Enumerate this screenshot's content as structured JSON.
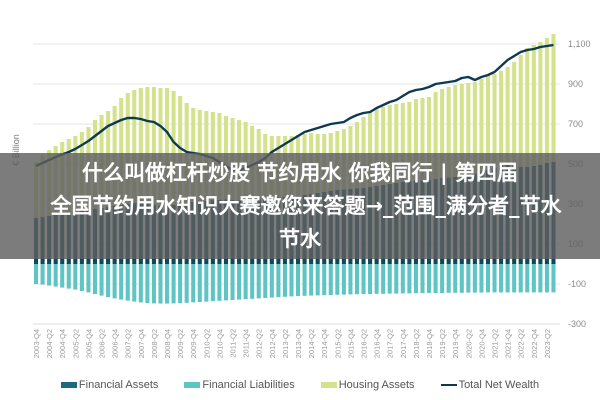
{
  "overlay": {
    "line1": "什么叫做杠杆炒股 节约用水 你我同行 | 第四届",
    "line2": "全国节约用水知识大赛邀您来答题→_范围_满分者_节水",
    "line3": "节水"
  },
  "colors": {
    "financial_assets": "#0a4a5c",
    "financial_liabilities": "#5fc4c4",
    "housing_assets": "#d4e28c",
    "total_net_wealth": "#0d3a50",
    "grid": "#e4e4e4"
  },
  "legend": [
    {
      "label": "Financial Assets",
      "color": "#1a6a80",
      "kind": "bar"
    },
    {
      "label": "Financial Liabilities",
      "color": "#5fc4c4",
      "kind": "bar"
    },
    {
      "label": "Housing Assets",
      "color": "#d4e28c",
      "kind": "bar"
    },
    {
      "label": "Total Net Wealth",
      "color": "#0d3a50",
      "kind": "line"
    }
  ],
  "chart_data": {
    "type": "bar",
    "title": "",
    "xlabel": "",
    "ylabel": "€ Billion",
    "ylim": [
      -300,
      1200
    ],
    "yticks": [
      1100,
      900,
      700,
      500,
      300,
      100,
      -100,
      -300
    ],
    "ytick_labels": [
      "1,100",
      "900",
      "700",
      "500",
      "300",
      "100",
      "-100",
      "-300"
    ],
    "grid": true,
    "legend_position": "bottom",
    "x_tick_labels": [
      "2003-Q4",
      "2004-Q2",
      "2004-Q4",
      "2005-Q2",
      "2005-Q4",
      "2006-Q2",
      "2006-Q4",
      "2007-Q2",
      "2007-Q4",
      "2008-Q2",
      "2008-Q4",
      "2009-Q2",
      "2009-Q4",
      "2010-Q2",
      "2010-Q4",
      "2011-Q2",
      "2011-Q4",
      "2012-Q2",
      "2012-Q4",
      "2013-Q2",
      "2013-Q4",
      "2014-Q2",
      "2014-Q4",
      "2015-Q2",
      "2015-Q4",
      "2016-Q2",
      "2016-Q4",
      "2017-Q2",
      "2017-Q4",
      "2018-Q2",
      "2018-Q4",
      "2019-Q2",
      "2019-Q4",
      "2020-Q2",
      "2020-Q4",
      "2021-Q2",
      "2021-Q4",
      "2022-Q2",
      "2022-Q4",
      "2023-Q2"
    ],
    "categories": [
      "2003-Q4",
      "2004-Q1",
      "2004-Q2",
      "2004-Q3",
      "2004-Q4",
      "2005-Q1",
      "2005-Q2",
      "2005-Q3",
      "2005-Q4",
      "2006-Q1",
      "2006-Q2",
      "2006-Q3",
      "2006-Q4",
      "2007-Q1",
      "2007-Q2",
      "2007-Q3",
      "2007-Q4",
      "2008-Q1",
      "2008-Q2",
      "2008-Q3",
      "2008-Q4",
      "2009-Q1",
      "2009-Q2",
      "2009-Q3",
      "2009-Q4",
      "2010-Q1",
      "2010-Q2",
      "2010-Q3",
      "2010-Q4",
      "2011-Q1",
      "2011-Q2",
      "2011-Q3",
      "2011-Q4",
      "2012-Q1",
      "2012-Q2",
      "2012-Q3",
      "2012-Q4",
      "2013-Q1",
      "2013-Q2",
      "2013-Q3",
      "2013-Q4",
      "2014-Q1",
      "2014-Q2",
      "2014-Q3",
      "2014-Q4",
      "2015-Q1",
      "2015-Q2",
      "2015-Q3",
      "2015-Q4",
      "2016-Q1",
      "2016-Q2",
      "2016-Q3",
      "2016-Q4",
      "2017-Q1",
      "2017-Q2",
      "2017-Q3",
      "2017-Q4",
      "2018-Q1",
      "2018-Q2",
      "2018-Q3",
      "2018-Q4",
      "2019-Q1",
      "2019-Q2",
      "2019-Q3",
      "2019-Q4",
      "2020-Q1",
      "2020-Q2",
      "2020-Q3",
      "2020-Q4",
      "2021-Q1",
      "2021-Q2",
      "2021-Q3",
      "2021-Q4",
      "2022-Q1",
      "2022-Q2",
      "2022-Q3",
      "2022-Q4",
      "2023-Q1",
      "2023-Q2",
      "2023-Q3"
    ],
    "series": [
      {
        "name": "Financial Assets",
        "kind": "bar",
        "values": [
          230,
          235,
          240,
          245,
          250,
          255,
          260,
          265,
          270,
          275,
          280,
          285,
          290,
          295,
          300,
          305,
          305,
          300,
          295,
          290,
          290,
          295,
          300,
          305,
          310,
          312,
          315,
          318,
          320,
          322,
          320,
          318,
          320,
          322,
          325,
          328,
          330,
          332,
          335,
          338,
          340,
          345,
          350,
          355,
          360,
          365,
          370,
          372,
          375,
          378,
          380,
          385,
          390,
          395,
          400,
          405,
          410,
          412,
          415,
          418,
          420,
          425,
          430,
          432,
          435,
          440,
          445,
          450,
          460,
          470,
          480,
          490,
          495,
          490,
          485,
          485,
          490,
          495,
          505,
          510
        ]
      },
      {
        "name": "Financial Liabilities",
        "kind": "bar",
        "values": [
          -100,
          -103,
          -108,
          -113,
          -118,
          -123,
          -128,
          -135,
          -142,
          -150,
          -158,
          -165,
          -172,
          -178,
          -183,
          -188,
          -192,
          -195,
          -197,
          -198,
          -198,
          -197,
          -196,
          -194,
          -192,
          -190,
          -188,
          -186,
          -184,
          -182,
          -180,
          -178,
          -176,
          -174,
          -172,
          -170,
          -168,
          -166,
          -164,
          -162,
          -160,
          -159,
          -158,
          -157,
          -156,
          -155,
          -154,
          -153,
          -152,
          -151,
          -150,
          -150,
          -149,
          -149,
          -148,
          -148,
          -147,
          -147,
          -146,
          -146,
          -145,
          -145,
          -145,
          -144,
          -144,
          -144,
          -143,
          -143,
          -143,
          -142,
          -142,
          -142,
          -142,
          -142,
          -142,
          -142,
          -142,
          -142,
          -142,
          -142
        ]
      },
      {
        "name": "Housing Assets",
        "kind": "bar",
        "values": [
          510,
          545,
          570,
          590,
          610,
          625,
          640,
          660,
          685,
          720,
          745,
          765,
          790,
          830,
          855,
          870,
          880,
          885,
          885,
          880,
          880,
          865,
          840,
          805,
          780,
          770,
          765,
          760,
          755,
          740,
          730,
          720,
          710,
          690,
          675,
          650,
          640,
          640,
          640,
          640,
          645,
          650,
          655,
          650,
          650,
          655,
          665,
          675,
          690,
          710,
          735,
          760,
          775,
          785,
          795,
          800,
          805,
          810,
          825,
          830,
          835,
          860,
          875,
          885,
          895,
          900,
          905,
          910,
          925,
          940,
          950,
          965,
          985,
          1010,
          1045,
          1080,
          1095,
          1110,
          1130,
          1150
        ]
      },
      {
        "name": "Total Net Wealth",
        "kind": "line",
        "values": [
          490,
          505,
          520,
          535,
          548,
          560,
          575,
          595,
          615,
          640,
          665,
          690,
          705,
          720,
          730,
          730,
          725,
          715,
          710,
          690,
          660,
          610,
          580,
          560,
          555,
          550,
          540,
          530,
          510,
          490,
          470,
          470,
          480,
          495,
          510,
          530,
          560,
          580,
          600,
          620,
          640,
          660,
          670,
          680,
          690,
          700,
          705,
          710,
          730,
          745,
          755,
          760,
          780,
          795,
          810,
          820,
          840,
          860,
          870,
          875,
          885,
          900,
          905,
          910,
          915,
          930,
          935,
          920,
          935,
          945,
          960,
          990,
          1020,
          1040,
          1060,
          1070,
          1075,
          1085,
          1090,
          1095
        ]
      }
    ]
  },
  "legend_labels": {
    "fa": "Financial Assets",
    "fl": "Financial Liabilities",
    "ha": "Housing Assets",
    "tnw": "Total Net Wealth"
  },
  "axis": {
    "ylabel": "€ Billion"
  }
}
